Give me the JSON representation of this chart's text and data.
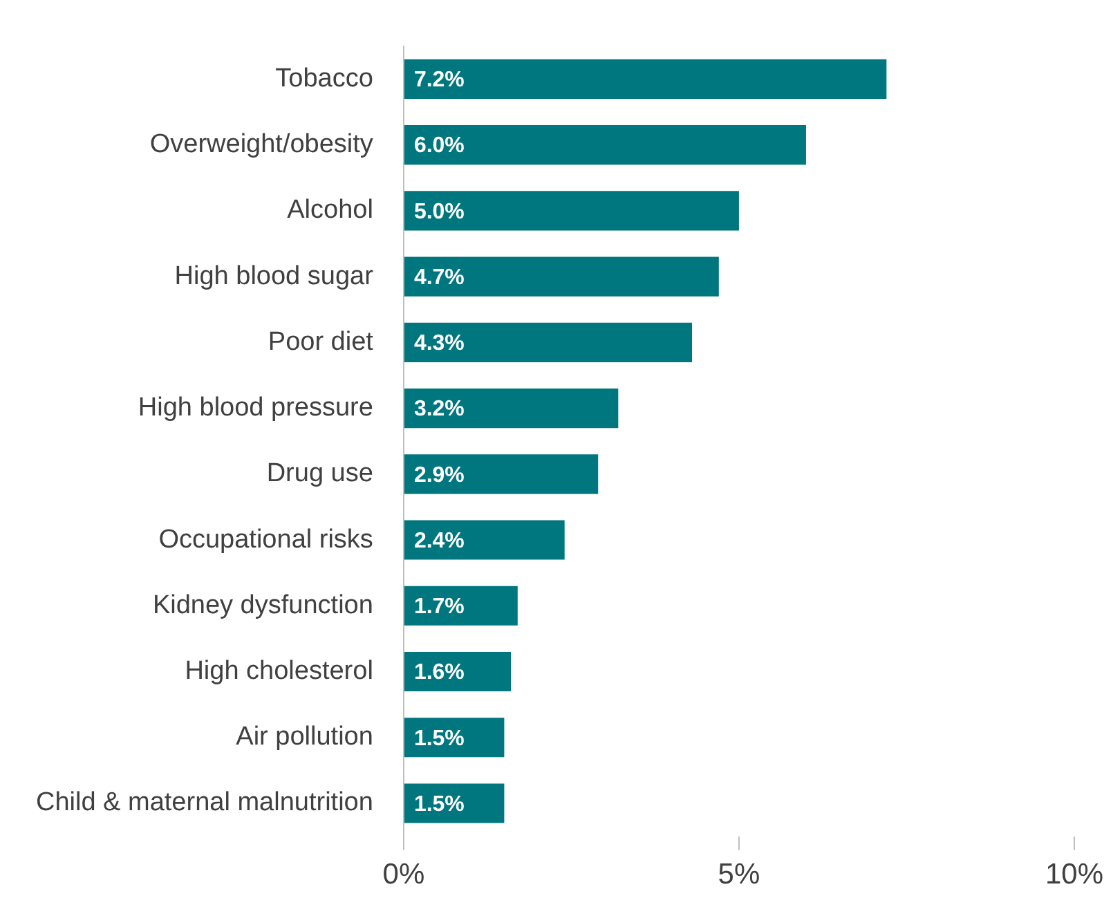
{
  "chart_data": {
    "type": "bar",
    "orientation": "horizontal",
    "categories": [
      "Tobacco",
      "Overweight/obesity",
      "Alcohol",
      "High blood sugar",
      "Poor diet",
      "High blood pressure",
      "Drug use",
      "Occupational risks",
      "Kidney dysfunction",
      "High cholesterol",
      "Air pollution",
      "Child & maternal malnutrition"
    ],
    "values": [
      7.2,
      6.0,
      5.0,
      4.7,
      4.3,
      3.2,
      2.9,
      2.4,
      1.7,
      1.6,
      1.5,
      1.5
    ],
    "value_labels": [
      "7.2%",
      "6.0%",
      "5.0%",
      "4.7%",
      "4.3%",
      "3.2%",
      "2.9%",
      "2.4%",
      "1.7%",
      "1.6%",
      "1.5%",
      "1.5%"
    ],
    "color": "#00777f",
    "xlim": [
      0,
      10
    ],
    "xticks": [
      {
        "value": 0,
        "label": "0%"
      },
      {
        "value": 5,
        "label": "5%"
      },
      {
        "value": 10,
        "label": "10%"
      }
    ],
    "grid": false,
    "legend": false
  }
}
